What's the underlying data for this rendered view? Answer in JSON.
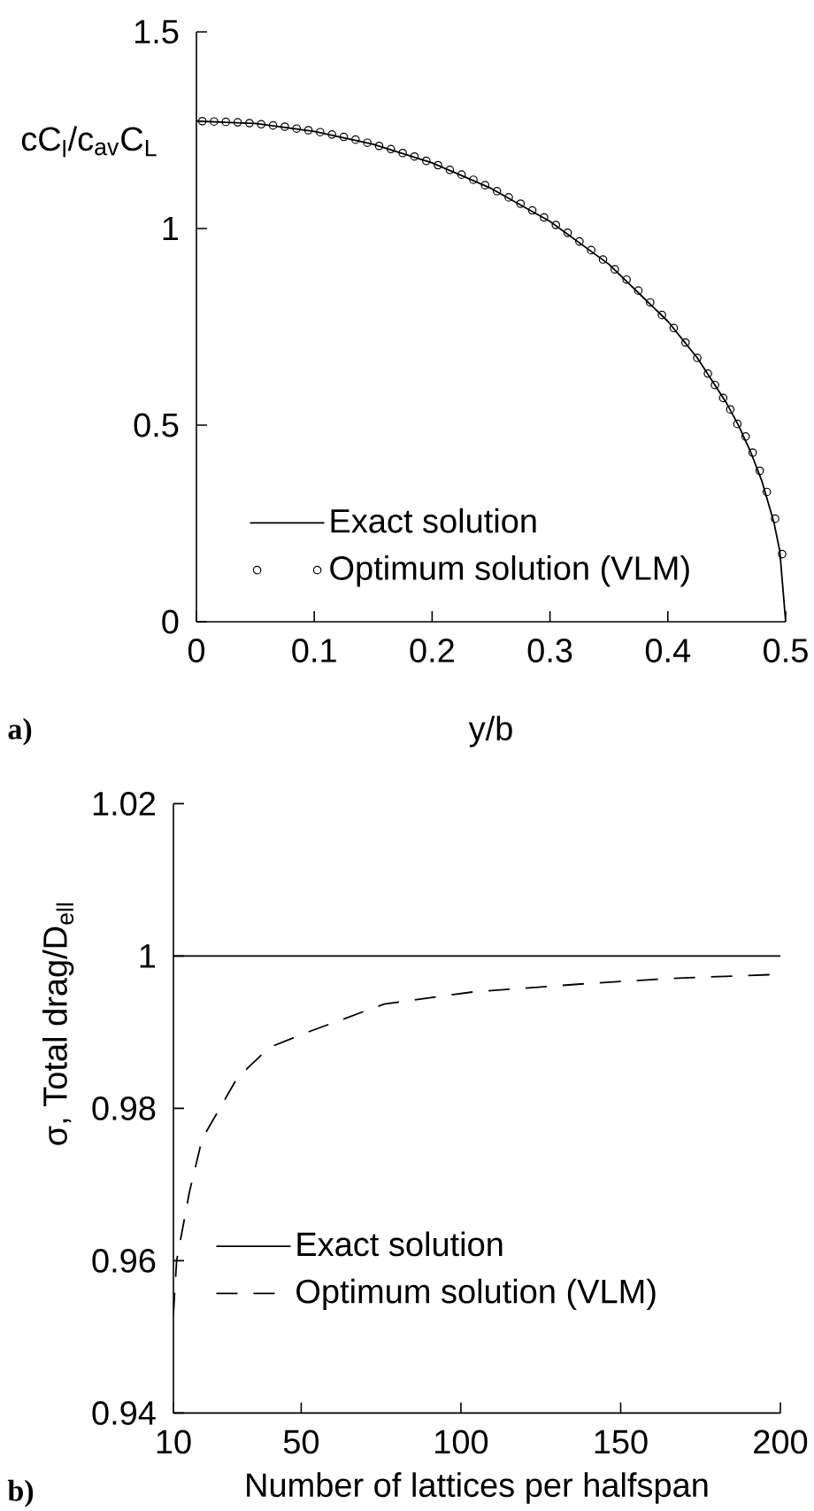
{
  "chart_data": [
    {
      "type": "line",
      "xlabel": "y/b",
      "ylabel": "cC$_{l}$/c$_{av}$C$_{L}$",
      "xlim": [
        0,
        0.5
      ],
      "ylim": [
        0,
        1.5
      ],
      "xticks": [
        0,
        0.1,
        0.2,
        0.3,
        0.4,
        0.5
      ],
      "yticks": [
        0,
        0.5,
        1,
        1.5
      ],
      "legend": "bottom left",
      "annotations": [
        "a)"
      ],
      "series": [
        {
          "name": "Exact solution",
          "color": "#000000",
          "marker": "none",
          "line_style": "solid",
          "x": [
            0,
            0.05,
            0.1,
            0.15,
            0.2,
            0.25,
            0.3,
            0.35,
            0.4,
            0.425,
            0.45,
            0.46,
            0.47,
            0.48,
            0.49,
            0.495,
            0.5
          ],
          "values": [
            1.273,
            1.267,
            1.247,
            1.214,
            1.167,
            1.102,
            1.018,
            0.909,
            0.764,
            0.671,
            0.555,
            0.499,
            0.434,
            0.356,
            0.253,
            0.18,
            0
          ]
        },
        {
          "name": "Optimum solution (VLM)",
          "type": "scatter",
          "color": "#000000",
          "marker": "circle",
          "x": [
            0.005,
            0.015,
            0.025,
            0.035,
            0.045,
            0.055,
            0.065,
            0.075,
            0.085,
            0.095,
            0.105,
            0.115,
            0.125,
            0.135,
            0.145,
            0.155,
            0.165,
            0.175,
            0.185,
            0.195,
            0.205,
            0.215,
            0.225,
            0.235,
            0.245,
            0.255,
            0.265,
            0.275,
            0.285,
            0.295,
            0.305,
            0.315,
            0.325,
            0.335,
            0.345,
            0.355,
            0.365,
            0.375,
            0.385,
            0.395,
            0.405,
            0.415,
            0.425,
            0.434,
            0.44,
            0.447,
            0.453,
            0.459,
            0.466,
            0.472,
            0.478,
            0.484,
            0.491,
            0.497
          ],
          "values": [
            1.273,
            1.272,
            1.271,
            1.27,
            1.268,
            1.265,
            1.262,
            1.259,
            1.254,
            1.25,
            1.245,
            1.239,
            1.233,
            1.226,
            1.218,
            1.21,
            1.202,
            1.192,
            1.183,
            1.172,
            1.161,
            1.149,
            1.137,
            1.124,
            1.11,
            1.095,
            1.079,
            1.063,
            1.046,
            1.028,
            1.009,
            0.989,
            0.967,
            0.945,
            0.921,
            0.896,
            0.87,
            0.842,
            0.812,
            0.78,
            0.747,
            0.71,
            0.671,
            0.631,
            0.602,
            0.569,
            0.54,
            0.503,
            0.471,
            0.43,
            0.384,
            0.33,
            0.262,
            0.172
          ]
        }
      ]
    },
    {
      "type": "line",
      "xlabel": "Number of lattices per halfspan",
      "ylabel": "σ, Total drag/D$_{ell}$",
      "xlim": [
        10,
        200
      ],
      "ylim": [
        0.94,
        1.02
      ],
      "xticks": [
        10,
        50,
        100,
        150,
        200
      ],
      "yticks": [
        0.94,
        0.96,
        0.98,
        1,
        1.02
      ],
      "legend": "bottom left",
      "annotations": [
        "b)"
      ],
      "series": [
        {
          "name": "Exact solution",
          "color": "#000000",
          "line_style": "solid",
          "x": [
            10,
            200
          ],
          "values": [
            1,
            1
          ]
        },
        {
          "name": "Optimum solution (VLM)",
          "color": "#000000",
          "line_style": "dashed",
          "x": [
            10,
            11,
            15,
            19,
            30,
            40,
            52,
            76,
            104,
            140,
            168,
            200
          ],
          "values": [
            0.953,
            0.96,
            0.969,
            0.976,
            0.984,
            0.988,
            0.99,
            0.9937,
            0.9953,
            0.9964,
            0.9971,
            0.9976
          ]
        }
      ]
    }
  ]
}
